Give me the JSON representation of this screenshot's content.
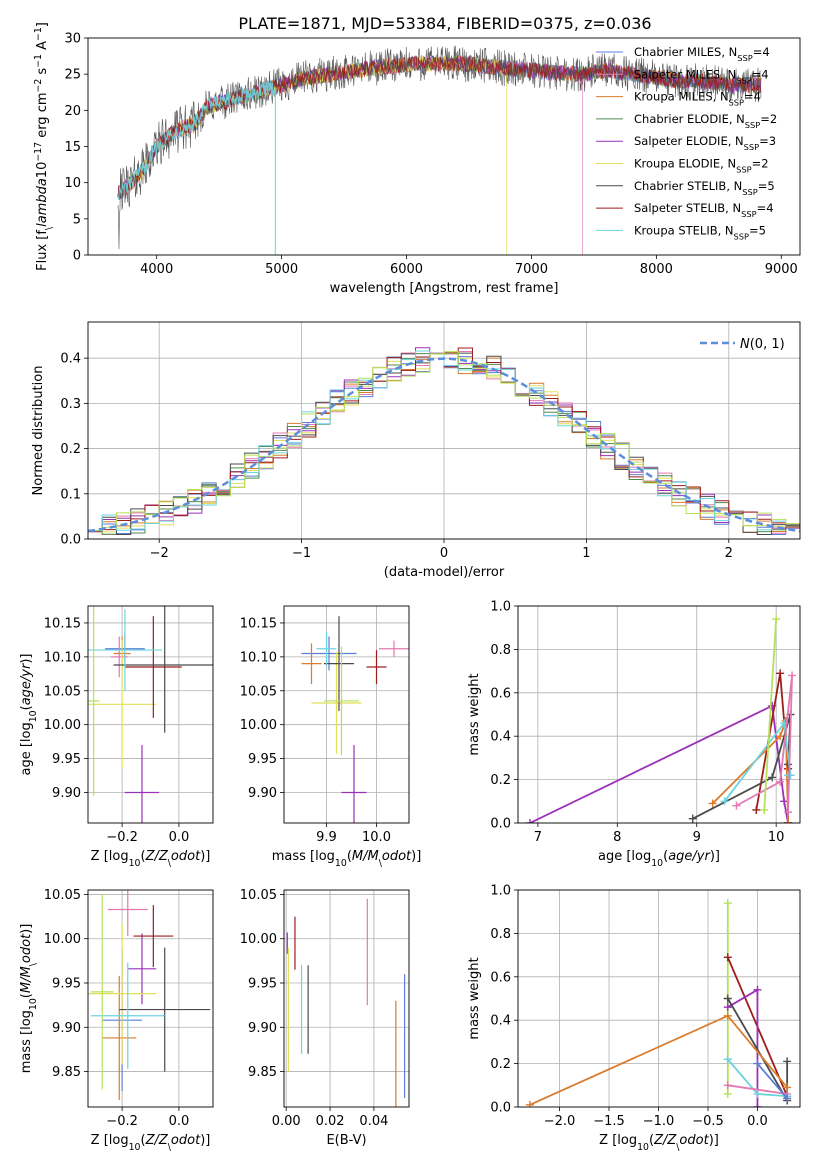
{
  "title": "PLATE=1871, MJD=53384, FIBERID=0375, z=0.036",
  "legend_top": [
    "Chabrier MILES, N$_{SSP}$=4",
    "Salpeter MILES, N$_{SSP}$=4",
    "Kroupa MILES, N$_{SSP}$=4",
    "Chabrier ELODIE, N$_{SSP}$=2",
    "Salpeter ELODIE, N$_{SSP}$=3",
    "Kroupa ELODIE, N$_{SSP}$=2",
    "Chabrier STELIB, N$_{SSP}$=5",
    "Salpeter STELIB, N$_{SSP}$=4",
    "Kroupa STELIB, N$_{SSP}$=5"
  ],
  "colors": [
    "#5b7fd6",
    "#e279b2",
    "#d97c2b",
    "#4f8a4f",
    "#9b30b8",
    "#e0e05a",
    "#555555",
    "#9e1d1d",
    "#6dd3df",
    "#b6e05a",
    "#4b4b4b"
  ],
  "chart_data": [
    {
      "id": "spectrum",
      "type": "line",
      "title": "PLATE=1871, MJD=53384, FIBERID=0375, z=0.036",
      "xlabel": "wavelength [Angstrom, rest frame]",
      "ylabel": "Flux [f$_\\lambda$10$^{-17}$ erg cm$^{-2}$ s$^{-1}$ A$^{-1}$]",
      "xlim": [
        3450,
        9150
      ],
      "ylim": [
        0,
        30
      ],
      "xticks": [
        4000,
        5000,
        6000,
        7000,
        8000,
        9000
      ],
      "yticks": [
        0,
        5,
        10,
        15,
        20,
        25,
        30
      ],
      "grid": false,
      "legend_position": "top-right",
      "continuum": [
        [
          3690,
          8.5
        ],
        [
          3800,
          10
        ],
        [
          3900,
          12
        ],
        [
          4000,
          15
        ],
        [
          4100,
          16.5
        ],
        [
          4200,
          17.5
        ],
        [
          4300,
          18
        ],
        [
          4400,
          20.5
        ],
        [
          4600,
          21.5
        ],
        [
          4800,
          22.5
        ],
        [
          5000,
          23.5
        ],
        [
          5200,
          24.5
        ],
        [
          5400,
          25
        ],
        [
          5600,
          25.5
        ],
        [
          5800,
          26
        ],
        [
          6000,
          26.3
        ],
        [
          6200,
          26.5
        ],
        [
          6400,
          26.5
        ],
        [
          6600,
          26.2
        ],
        [
          6800,
          25.8
        ],
        [
          7000,
          25.5
        ],
        [
          7200,
          25.2
        ],
        [
          7400,
          25
        ],
        [
          7600,
          25.5
        ],
        [
          7800,
          25
        ],
        [
          8000,
          24.5
        ],
        [
          8200,
          24
        ],
        [
          8400,
          24
        ],
        [
          8600,
          23.5
        ],
        [
          8840,
          23.5
        ]
      ],
      "cutoffs": [
        {
          "series": "Kroupa STELIB",
          "x": 4950
        },
        {
          "series": "Kroupa ELODIE",
          "x": 6800
        },
        {
          "series": "Salpeter MILES",
          "x": 7410
        }
      ]
    },
    {
      "id": "residuals",
      "type": "line",
      "xlabel": "(data-model)/error",
      "ylabel": "Normed distribution",
      "xlim": [
        -2.5,
        2.5
      ],
      "ylim": [
        0,
        0.48
      ],
      "xticks": [
        -2,
        -1,
        0,
        1,
        2
      ],
      "yticks": [
        0.0,
        0.1,
        0.2,
        0.3,
        0.4
      ],
      "grid": true,
      "legend": "$\\mathcal{N}(0,1)$",
      "legend_position": "top-right",
      "bin_width": 0.1
    },
    {
      "id": "age_vs_z",
      "type": "scatter",
      "xlabel": "Z [log$_{10}$($Z/Z_\\odot$)]",
      "ylabel": "age  [log$_{10}$($age/yr$)]",
      "xlim": [
        -0.32,
        0.12
      ],
      "ylim": [
        9.855,
        10.175
      ],
      "xticks": [
        -0.2,
        0.0
      ],
      "yticks": [
        9.9,
        9.95,
        10.0,
        10.05,
        10.1,
        10.15
      ],
      "grid": true,
      "points": [
        {
          "x": -0.19,
          "y": 10.112,
          "ex": 0.07,
          "ey": 0.022,
          "c": 0
        },
        {
          "x": -0.21,
          "y": 10.1,
          "ex": 0.03,
          "ey": 0.03,
          "c": 1
        },
        {
          "x": -0.2,
          "y": 10.105,
          "ex": 0.03,
          "ey": 0.025,
          "c": 2
        },
        {
          "x": -0.13,
          "y": 9.9,
          "ex": 0.06,
          "ey": 0.07,
          "c": 4
        },
        {
          "x": -0.2,
          "y": 10.03,
          "ex": 0.12,
          "ey": 0.095,
          "c": 5
        },
        {
          "x": -0.05,
          "y": 10.088,
          "ex": 0.18,
          "ey": 0.1,
          "c": 10
        },
        {
          "x": -0.09,
          "y": 10.085,
          "ex": 0.1,
          "ey": 0.075,
          "c": 7
        },
        {
          "x": -0.19,
          "y": 10.11,
          "ex": 0.13,
          "ey": 0.06,
          "c": 8
        },
        {
          "x": -0.3,
          "y": 10.035,
          "ex": 0.02,
          "ey": 0.14,
          "c": 9
        }
      ]
    },
    {
      "id": "age_vs_mass",
      "type": "scatter",
      "xlabel": "mass [log$_{10}$($M/M_\\odot$)]",
      "ylabel": "",
      "xlim": [
        9.815,
        10.065
      ],
      "ylim": [
        9.855,
        10.175
      ],
      "xticks": [
        9.9,
        10.0
      ],
      "yticks": [
        9.9,
        9.95,
        10.0,
        10.05,
        10.1,
        10.15
      ],
      "grid": true,
      "points": [
        {
          "x": 9.905,
          "y": 10.105,
          "ex": 0.055,
          "ey": 0.025,
          "c": 0
        },
        {
          "x": 10.035,
          "y": 10.112,
          "ex": 0.03,
          "ey": 0.012,
          "c": 1
        },
        {
          "x": 9.87,
          "y": 10.09,
          "ex": 0.02,
          "ey": 0.03,
          "c": 2
        },
        {
          "x": 9.955,
          "y": 9.9,
          "ex": 0.025,
          "ey": 0.07,
          "c": 4
        },
        {
          "x": 9.92,
          "y": 10.032,
          "ex": 0.05,
          "ey": 0.075,
          "c": 5
        },
        {
          "x": 9.925,
          "y": 10.09,
          "ex": 0.03,
          "ey": 0.07,
          "c": 10
        },
        {
          "x": 10.0,
          "y": 10.085,
          "ex": 0.02,
          "ey": 0.025,
          "c": 7
        },
        {
          "x": 9.9,
          "y": 10.112,
          "ex": 0.02,
          "ey": 0.025,
          "c": 8
        },
        {
          "x": 9.93,
          "y": 10.035,
          "ex": 0.035,
          "ey": 0.08,
          "c": 9
        }
      ]
    },
    {
      "id": "weight_vs_age",
      "type": "line",
      "xlabel": "age  [log$_{10}$($age/yr$)]",
      "ylabel": "mass weight",
      "xlim": [
        6.75,
        10.3
      ],
      "ylim": [
        0,
        1.0
      ],
      "xticks": [
        7,
        8,
        9,
        10
      ],
      "yticks": [
        0.0,
        0.2,
        0.4,
        0.6,
        0.8,
        1.0
      ],
      "grid": true,
      "series": [
        {
          "c": 4,
          "x": [
            6.9,
            9.95,
            10.1,
            10.15
          ],
          "y": [
            0.0,
            0.54,
            0.1,
            0.0
          ]
        },
        {
          "c": 7,
          "x": [
            9.75,
            10.05,
            10.15,
            10.15
          ],
          "y": [
            0.06,
            0.69,
            0.25,
            0.0
          ]
        },
        {
          "c": 2,
          "x": [
            9.2,
            10.05,
            10.12,
            10.15
          ],
          "y": [
            0.09,
            0.4,
            0.47,
            0.0
          ]
        },
        {
          "c": 10,
          "x": [
            8.95,
            9.95,
            10.18,
            10.15
          ],
          "y": [
            0.02,
            0.21,
            0.5,
            0.27
          ]
        },
        {
          "c": 8,
          "x": [
            9.35,
            10.1,
            10.18,
            10.15
          ],
          "y": [
            0.1,
            0.46,
            0.22,
            0.22
          ]
        },
        {
          "c": 1,
          "x": [
            9.5,
            10.05,
            10.2,
            10.15
          ],
          "y": [
            0.08,
            0.19,
            0.68,
            0.05
          ]
        },
        {
          "c": 9,
          "x": [
            9.85,
            10.0
          ],
          "y": [
            0.06,
            0.94
          ]
        }
      ]
    },
    {
      "id": "mass_vs_z",
      "type": "scatter",
      "xlabel": "Z [log$_{10}$($Z/Z_\\odot$)]",
      "ylabel": "mass [log$_{10}$($M/M_\\odot$)]",
      "xlim": [
        -0.32,
        0.12
      ],
      "ylim": [
        9.81,
        10.055
      ],
      "xticks": [
        -0.2,
        0.0
      ],
      "yticks": [
        9.85,
        9.9,
        9.95,
        10.0,
        10.05
      ],
      "grid": true,
      "points": [
        {
          "x": -0.2,
          "y": 9.908,
          "ex": 0.07,
          "ey": 0.08,
          "c": 0
        },
        {
          "x": -0.18,
          "y": 10.033,
          "ex": 0.07,
          "ey": 0.03,
          "c": 1
        },
        {
          "x": -0.21,
          "y": 9.888,
          "ex": 0.06,
          "ey": 0.07,
          "c": 2
        },
        {
          "x": -0.13,
          "y": 9.966,
          "ex": 0.05,
          "ey": 0.04,
          "c": 4
        },
        {
          "x": -0.2,
          "y": 9.938,
          "ex": 0.12,
          "ey": 0.08,
          "c": 5
        },
        {
          "x": -0.05,
          "y": 9.92,
          "ex": 0.16,
          "ey": 0.07,
          "c": 10
        },
        {
          "x": -0.09,
          "y": 10.003,
          "ex": 0.07,
          "ey": 0.035,
          "c": 7
        },
        {
          "x": -0.18,
          "y": 9.913,
          "ex": 0.13,
          "ey": 0.06,
          "c": 8
        },
        {
          "x": -0.27,
          "y": 9.94,
          "ex": 0.04,
          "ey": 0.11,
          "c": 9
        }
      ]
    },
    {
      "id": "mass_vs_ebv",
      "type": "scatter",
      "xlabel": "E(B-V)",
      "ylabel": "",
      "xlim": [
        -0.001,
        0.056
      ],
      "ylim": [
        9.81,
        10.055
      ],
      "xticks": [
        0.0,
        0.02,
        0.04
      ],
      "yticks": [
        9.85,
        9.9,
        9.95,
        10.0,
        10.05
      ],
      "grid": true,
      "points": [
        {
          "x": 0.054,
          "y": 9.89,
          "ex": 0,
          "ey": 0.07,
          "c": 0
        },
        {
          "x": 0.037,
          "y": 9.985,
          "ex": 0,
          "ey": 0.06,
          "c": 1
        },
        {
          "x": 0.05,
          "y": 9.86,
          "ex": 0,
          "ey": 0.07,
          "c": 2
        },
        {
          "x": 0.0005,
          "y": 9.995,
          "ex": 0,
          "ey": 0.012,
          "c": 4
        },
        {
          "x": 0.001,
          "y": 9.92,
          "ex": 0,
          "ey": 0.07,
          "c": 5
        },
        {
          "x": 0.01,
          "y": 9.92,
          "ex": 0,
          "ey": 0.05,
          "c": 10
        },
        {
          "x": 0.004,
          "y": 9.995,
          "ex": 0,
          "ey": 0.03,
          "c": 7
        },
        {
          "x": 0.007,
          "y": 9.92,
          "ex": 0,
          "ey": 0.05,
          "c": 8
        }
      ]
    },
    {
      "id": "weight_vs_z",
      "type": "line",
      "xlabel": "Z [log$_{10}$($Z/Z_\\odot$)]",
      "ylabel": "mass weight",
      "xlim": [
        -2.42,
        0.43
      ],
      "ylim": [
        0,
        1.0
      ],
      "xticks": [
        -2.0,
        -1.5,
        -1.0,
        -0.5,
        0.0
      ],
      "yticks": [
        0.0,
        0.2,
        0.4,
        0.6,
        0.8,
        1.0
      ],
      "grid": true,
      "series": [
        {
          "c": 9,
          "x": [
            -0.3,
            -0.3
          ],
          "y": [
            0.94,
            0.06
          ]
        },
        {
          "c": 7,
          "x": [
            -0.3,
            0.3
          ],
          "y": [
            0.69,
            0.05
          ]
        },
        {
          "c": 4,
          "x": [
            -0.3,
            0.0,
            0.0
          ],
          "y": [
            0.46,
            0.54,
            0.0
          ]
        },
        {
          "c": 10,
          "x": [
            -0.3,
            0.3,
            0.3
          ],
          "y": [
            0.5,
            0.03,
            0.21
          ]
        },
        {
          "c": 8,
          "x": [
            -0.3,
            0.0,
            0.3
          ],
          "y": [
            0.22,
            0.06,
            0.05
          ]
        },
        {
          "c": 1,
          "x": [
            -0.3,
            0.3
          ],
          "y": [
            0.1,
            0.06
          ]
        },
        {
          "c": 0,
          "x": [
            0.0,
            0.3
          ],
          "y": [
            0.2,
            0.04
          ]
        },
        {
          "c": 2,
          "x": [
            -2.3,
            -0.3,
            0.3
          ],
          "y": [
            0.01,
            0.42,
            0.09
          ]
        }
      ]
    }
  ]
}
